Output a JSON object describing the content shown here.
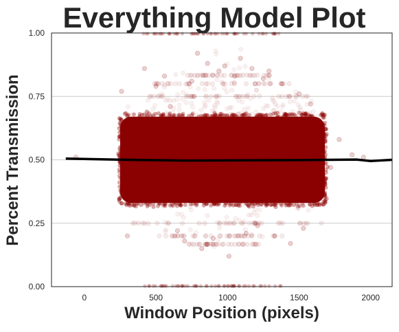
{
  "chart_data": {
    "type": "scatter",
    "title": "Everything Model Plot",
    "xlabel": "Window Position (pixels)",
    "ylabel": "Percent Transmission",
    "xlim": [
      -230,
      2150
    ],
    "ylim": [
      0.0,
      1.0
    ],
    "xticks": [
      0,
      500,
      1000,
      1500,
      2000
    ],
    "xtick_labels": [
      "0",
      "500",
      "1000",
      "1500",
      "2000"
    ],
    "yticks": [
      0.0,
      0.25,
      0.5,
      0.75,
      1.0
    ],
    "ytick_labels": [
      "0.00",
      "0.25",
      "0.50",
      "0.75",
      "1.00"
    ],
    "grid": "horizontal",
    "legend": "none",
    "colors": {
      "points": "#8b0000",
      "fit_line": "#000000",
      "grid": "#cccccc",
      "axes": "#222222",
      "text": "#262626"
    },
    "series": [
      {
        "kind": "scatter",
        "dense_band": {
          "x_range": [
            250,
            1680
          ],
          "y_range": [
            0.33,
            0.67
          ]
        },
        "halo": {
          "x_range": [
            250,
            1680
          ],
          "y_range": [
            0.15,
            0.92
          ]
        },
        "points": [
          [
            -60,
            0.51
          ],
          [
            1720,
            0.47
          ],
          [
            1780,
            0.58
          ],
          [
            1870,
            0.52
          ],
          [
            1950,
            0.51
          ],
          [
            260,
            0.77
          ],
          [
            300,
            0.2
          ],
          [
            420,
            0.86
          ],
          [
            500,
            0.79
          ],
          [
            560,
            0.83
          ],
          [
            600,
            0.71
          ],
          [
            650,
            0.22
          ],
          [
            700,
            0.18
          ],
          [
            750,
            0.81
          ],
          [
            790,
            0.92
          ],
          [
            820,
            0.15
          ],
          [
            860,
            0.88
          ],
          [
            900,
            0.19
          ],
          [
            940,
            0.85
          ],
          [
            980,
            0.87
          ],
          [
            1010,
            0.12
          ],
          [
            1050,
            0.83
          ],
          [
            1090,
            0.9
          ],
          [
            1130,
            0.21
          ],
          [
            1170,
            0.86
          ],
          [
            1210,
            0.24
          ],
          [
            1250,
            0.82
          ],
          [
            1290,
            0.85
          ],
          [
            1330,
            0.2
          ],
          [
            1380,
            0.8
          ],
          [
            1440,
            0.17
          ],
          [
            1500,
            0.76
          ],
          [
            1530,
            0.23
          ],
          [
            1580,
            0.72
          ]
        ],
        "value_rows": [
          {
            "x": [
              280,
              1700
            ],
            "y": 0.25
          },
          {
            "x": [
              320,
              1600
            ],
            "y": 0.75
          },
          {
            "x": [
              480,
              1450
            ],
            "y": 0.8
          },
          {
            "x": [
              520,
              1400
            ],
            "y": 0.2
          },
          {
            "x": [
              650,
              1300
            ],
            "y": 0.833
          },
          {
            "x": [
              700,
              1250
            ],
            "y": 0.167
          }
        ],
        "boundary_points": [
          {
            "x": [
              400,
              1380
            ],
            "y": 1.0
          },
          {
            "x": [
              400,
              1380
            ],
            "y": 0.0
          }
        ]
      },
      {
        "kind": "line",
        "x": [
          -130,
          300,
          700,
          1100,
          1500,
          1900,
          2000,
          2150
        ],
        "y": [
          0.505,
          0.5,
          0.497,
          0.498,
          0.499,
          0.501,
          0.495,
          0.5
        ]
      }
    ]
  }
}
